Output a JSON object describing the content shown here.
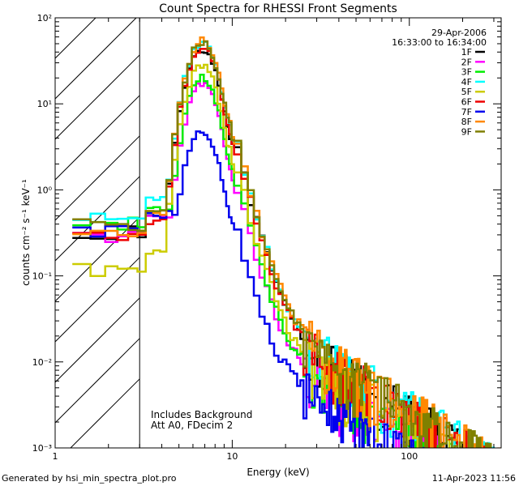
{
  "chart_data": {
    "type": "line",
    "title": "Count Spectra for RHESSI Front Segments",
    "xlabel": "Energy (keV)",
    "ylabel": "counts cm⁻² s⁻¹ keV⁻¹",
    "xscale": "log",
    "yscale": "log",
    "xlim": [
      1,
      330
    ],
    "ylim": [
      0.001,
      100
    ],
    "x_ticks": [
      {
        "v": 1,
        "label": "1"
      },
      {
        "v": 10,
        "label": "10"
      },
      {
        "v": 100,
        "label": "100"
      }
    ],
    "y_ticks": [
      {
        "v": 100,
        "label": "10²"
      },
      {
        "v": 10,
        "label": "10¹"
      },
      {
        "v": 1,
        "label": "10⁰"
      },
      {
        "v": 0.1,
        "label": "10⁻¹"
      },
      {
        "v": 0.01,
        "label": "10⁻²"
      },
      {
        "v": 0.001,
        "label": "10⁻³"
      }
    ],
    "hatched_region_keV": [
      1,
      3
    ],
    "date": "29-Apr-2006",
    "time_range": "16:33:00 to 16:34:00",
    "annotations": [
      "Includes Background",
      "Att A0, FDecim 2"
    ],
    "legend_position": "top-right",
    "series": [
      {
        "name": "1F",
        "color": "#000000",
        "peak": 44,
        "lowE": 0.33
      },
      {
        "name": "2F",
        "color": "#ff00ff",
        "peak": 17,
        "lowE": 0.31
      },
      {
        "name": "3F",
        "color": "#00ee00",
        "peak": 20,
        "lowE": 0.42
      },
      {
        "name": "4F",
        "color": "#00ffff",
        "peak": 52,
        "lowE": 0.55
      },
      {
        "name": "5F",
        "color": "#cccc00",
        "peak": 28,
        "lowE": 0.12
      },
      {
        "name": "6F",
        "color": "#ee0000",
        "peak": 45,
        "lowE": 0.28
      },
      {
        "name": "7F",
        "color": "#0000ee",
        "peak": 4.8,
        "lowE": 0.35
      },
      {
        "name": "8F",
        "color": "#ff8800",
        "peak": 55,
        "lowE": 0.36
      },
      {
        "name": "9F",
        "color": "#808000",
        "peak": 52,
        "lowE": 0.4
      }
    ]
  },
  "footer": {
    "generated": "Generated by hsi_min_spectra_plot.pro",
    "timestamp": "11-Apr-2023 11:56"
  }
}
